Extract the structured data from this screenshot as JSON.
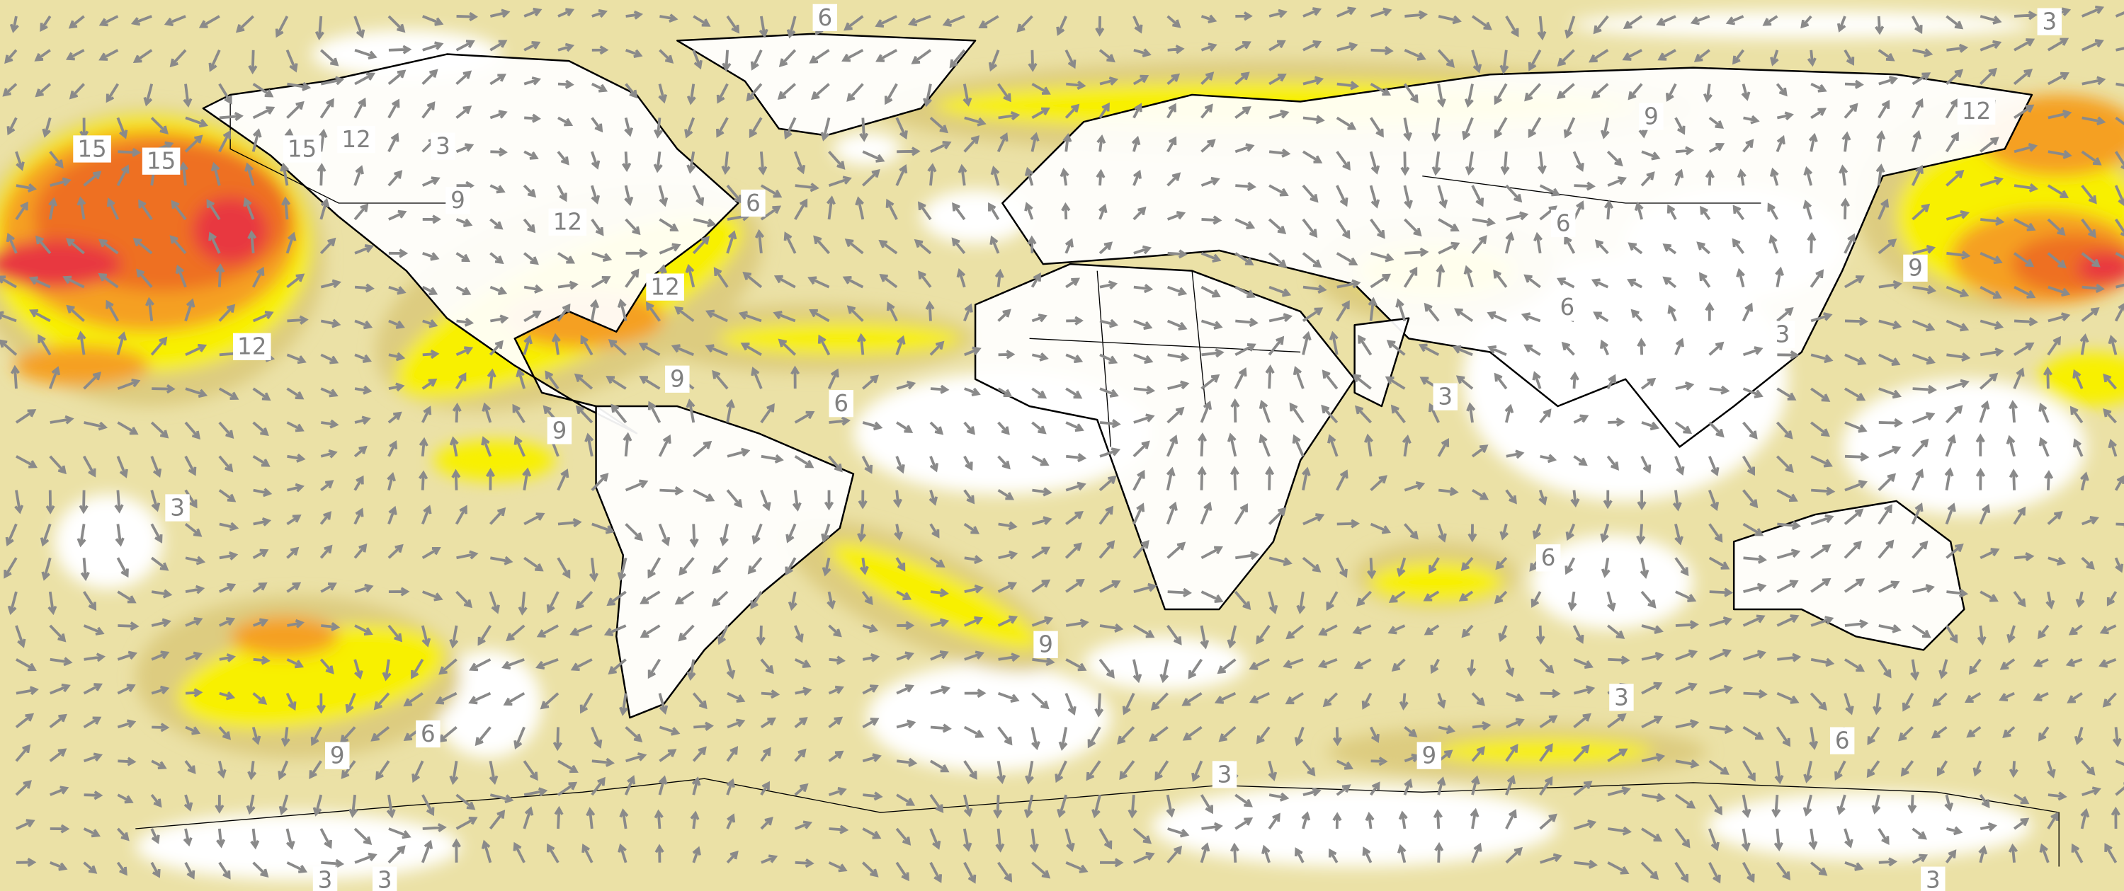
{
  "contour_labels": [
    "6",
    "3",
    "15",
    "15",
    "15",
    "12",
    "3",
    "9",
    "12",
    "6",
    "12",
    "12",
    "9",
    "9",
    "6",
    "9",
    "12",
    "6",
    "9",
    "3",
    "3",
    "6",
    "3",
    "9",
    "9",
    "6",
    "3",
    "6",
    "9",
    "3",
    "3",
    "3",
    "3",
    "6"
  ]
}
